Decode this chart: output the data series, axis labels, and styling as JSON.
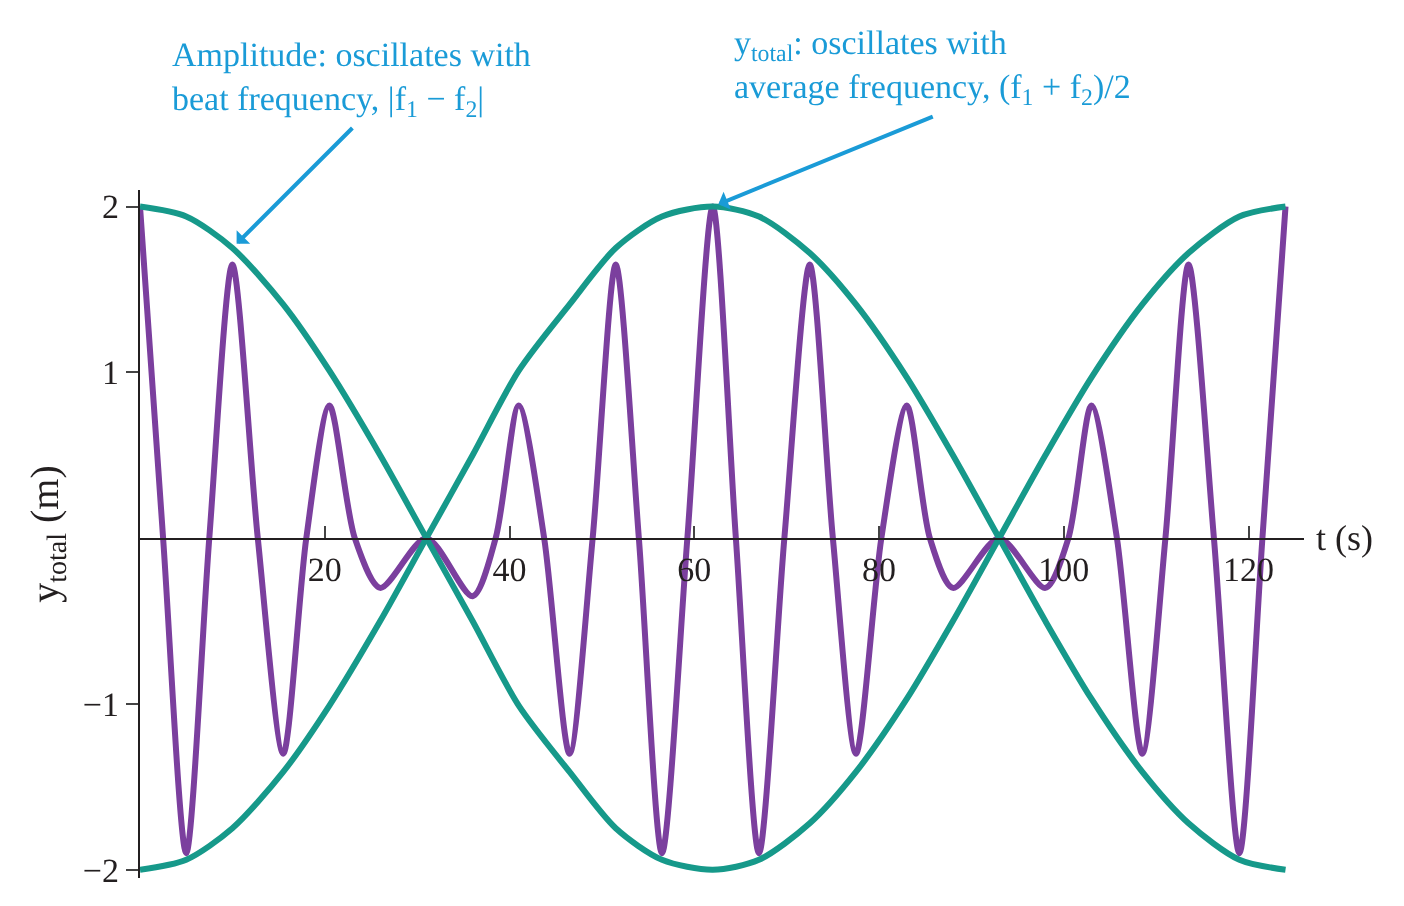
{
  "chart_data": {
    "type": "line",
    "xlabel": "t (s)",
    "ylabel": "y$_{total}$ (m)",
    "x": [
      0,
      5,
      10,
      15.5,
      20.5,
      26,
      31,
      36,
      41,
      46.5,
      51.5,
      56.5,
      62,
      67,
      72.5,
      77.5,
      83,
      88,
      93,
      98,
      103,
      108.5,
      113.5,
      119,
      124
    ],
    "series": [
      {
        "color": "#7b3f9e",
        "x": [
          0,
          2.5,
          5,
          7.5,
          10,
          12.75,
          15.5,
          18,
          20.5,
          23.25,
          26,
          31,
          36,
          38.5,
          41,
          43.75,
          46.5,
          49,
          51.5,
          54,
          56.5,
          59.25,
          62,
          64.5,
          67,
          69.75,
          72.5,
          75,
          77.5,
          80.25,
          83,
          85.5,
          88,
          93,
          98,
          100.5,
          103,
          105.75,
          108.5,
          111,
          113.5,
          116.25,
          119,
          121.5,
          124
        ],
        "values": [
          2,
          0,
          -1.9,
          0,
          1.65,
          0,
          -1.3,
          0,
          0.8,
          0,
          -0.3,
          0,
          -0.35,
          0,
          0.8,
          0,
          -1.3,
          0,
          1.65,
          0,
          -1.9,
          0,
          2,
          0,
          -1.9,
          0,
          1.65,
          0,
          -1.3,
          0,
          0.8,
          0,
          -0.3,
          0,
          -0.3,
          0,
          0.8,
          0,
          -1.3,
          0,
          1.65,
          0,
          -1.9,
          0,
          2
        ]
      },
      {
        "color": "#16998a",
        "values": [
          2,
          1.94,
          1.75,
          1.41,
          1.01,
          0.5,
          0,
          -0.5,
          -1.01,
          -1.41,
          -1.75,
          -1.94,
          -2,
          -1.94,
          -1.72,
          -1.41,
          -0.97,
          -0.5,
          0,
          0.5,
          0.97,
          1.41,
          1.72,
          1.94,
          2
        ]
      },
      {
        "color": "#16998a",
        "values": [
          -2,
          -1.94,
          -1.75,
          -1.41,
          -1.01,
          -0.5,
          0,
          0.5,
          1.01,
          1.41,
          1.75,
          1.94,
          2,
          1.94,
          1.72,
          1.41,
          0.97,
          0.5,
          0,
          -0.5,
          -0.97,
          -1.41,
          -1.72,
          -1.94,
          -2
        ]
      }
    ],
    "xlim": [
      0,
      126
    ],
    "xticks": [
      20,
      40,
      60,
      80,
      100,
      120
    ],
    "ylim": [
      -2.05,
      2.1
    ],
    "yticks": [
      {
        "value": -2,
        "label": "−2"
      },
      {
        "value": -1,
        "label": "−1"
      },
      1,
      2
    ],
    "marker": "none",
    "line_style": "solid",
    "annotations": [
      {
        "text": "Amplitude: oscillates with beat frequency, |f$_{1}$ − f$_{2}$|",
        "x": 10,
        "y": 1.75
      },
      {
        "text": "y$_{total}$: oscillates with average frequency, (f$_{1}$ + f$_{2}$)/2",
        "x": 62,
        "y": 2
      }
    ]
  }
}
